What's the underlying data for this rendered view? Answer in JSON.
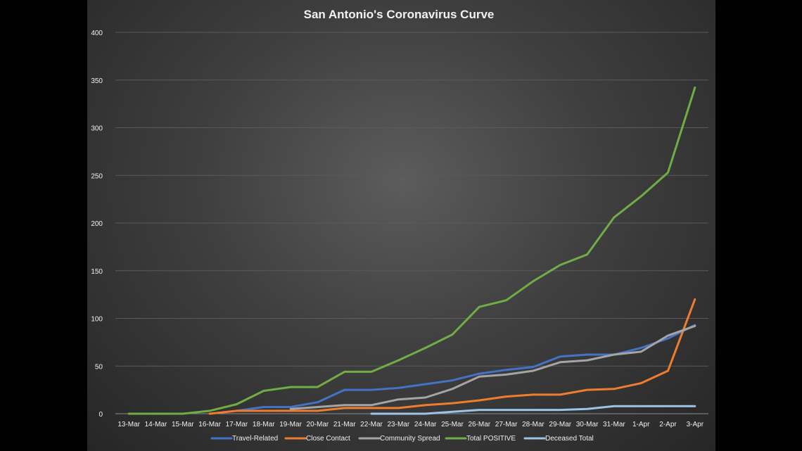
{
  "chart_data": {
    "type": "line",
    "title": "San Antonio's Coronavirus Curve",
    "xlabel": "",
    "ylabel": "",
    "ylim": [
      0,
      400
    ],
    "yticks": [
      0,
      50,
      100,
      150,
      200,
      250,
      300,
      350,
      400
    ],
    "grid": true,
    "legend_position": "bottom",
    "categories": [
      "13-Mar",
      "14-Mar",
      "15-Mar",
      "16-Mar",
      "17-Mar",
      "18-Mar",
      "19-Mar",
      "20-Mar",
      "21-Mar",
      "22-Mar",
      "23-Mar",
      "24-Mar",
      "25-Mar",
      "26-Mar",
      "27-Mar",
      "28-Mar",
      "29-Mar",
      "30-Mar",
      "31-Mar",
      "1-Apr",
      "2-Apr",
      "3-Apr"
    ],
    "series": [
      {
        "name": "Travel-Related",
        "color": "#4472c4",
        "values": [
          null,
          null,
          null,
          null,
          3,
          7,
          7,
          12,
          25,
          25,
          27,
          31,
          35,
          42,
          46,
          49,
          60,
          62,
          62,
          69,
          79,
          93
        ]
      },
      {
        "name": "Close Contact",
        "color": "#ed7d31",
        "values": [
          null,
          null,
          null,
          0,
          3,
          3,
          3,
          3,
          6,
          6,
          6,
          9,
          11,
          14,
          18,
          20,
          20,
          25,
          26,
          32,
          45,
          120
        ]
      },
      {
        "name": "Community Spread",
        "color": "#a5a5a5",
        "values": [
          null,
          null,
          null,
          null,
          null,
          null,
          5,
          7,
          9,
          9,
          15,
          17,
          26,
          39,
          41,
          45,
          54,
          56,
          62,
          65,
          82,
          92
        ]
      },
      {
        "name": "Total POSITIVE",
        "color": "#70ad47",
        "values": [
          0,
          0,
          0,
          3,
          10,
          24,
          28,
          28,
          44,
          44,
          56,
          69,
          83,
          112,
          119,
          139,
          156,
          167,
          206,
          228,
          253,
          342
        ]
      },
      {
        "name": "Deceased Total",
        "color": "#9dc3e6",
        "values": [
          null,
          null,
          null,
          null,
          null,
          null,
          null,
          null,
          null,
          0,
          0,
          0,
          2,
          4,
          4,
          4,
          4,
          5,
          8,
          8,
          8,
          8
        ]
      }
    ]
  }
}
